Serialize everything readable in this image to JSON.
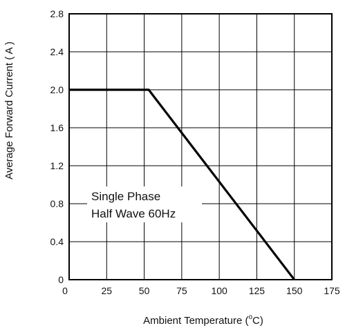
{
  "chart_data": {
    "type": "line",
    "xlabel": "Ambient Temperature (",
    "xlabel_deg": "o",
    "xlabel_unit": "C)",
    "ylabel": "Average Forward Current ( A )",
    "xlim": [
      0,
      175
    ],
    "ylim": [
      0,
      2.8
    ],
    "x_ticks": [
      "0",
      "25",
      "50",
      "75",
      "100",
      "125",
      "150",
      "175"
    ],
    "y_ticks": [
      "0",
      "0.4",
      "0.8",
      "1.2",
      "1.6",
      "2.0",
      "2.4",
      "2.8"
    ],
    "grid": true,
    "series": [
      {
        "points": [
          [
            0,
            2.0
          ],
          [
            53,
            2.0
          ],
          [
            150,
            0
          ]
        ]
      }
    ],
    "annotation": [
      "Single Phase",
      "Half Wave 60Hz"
    ]
  }
}
